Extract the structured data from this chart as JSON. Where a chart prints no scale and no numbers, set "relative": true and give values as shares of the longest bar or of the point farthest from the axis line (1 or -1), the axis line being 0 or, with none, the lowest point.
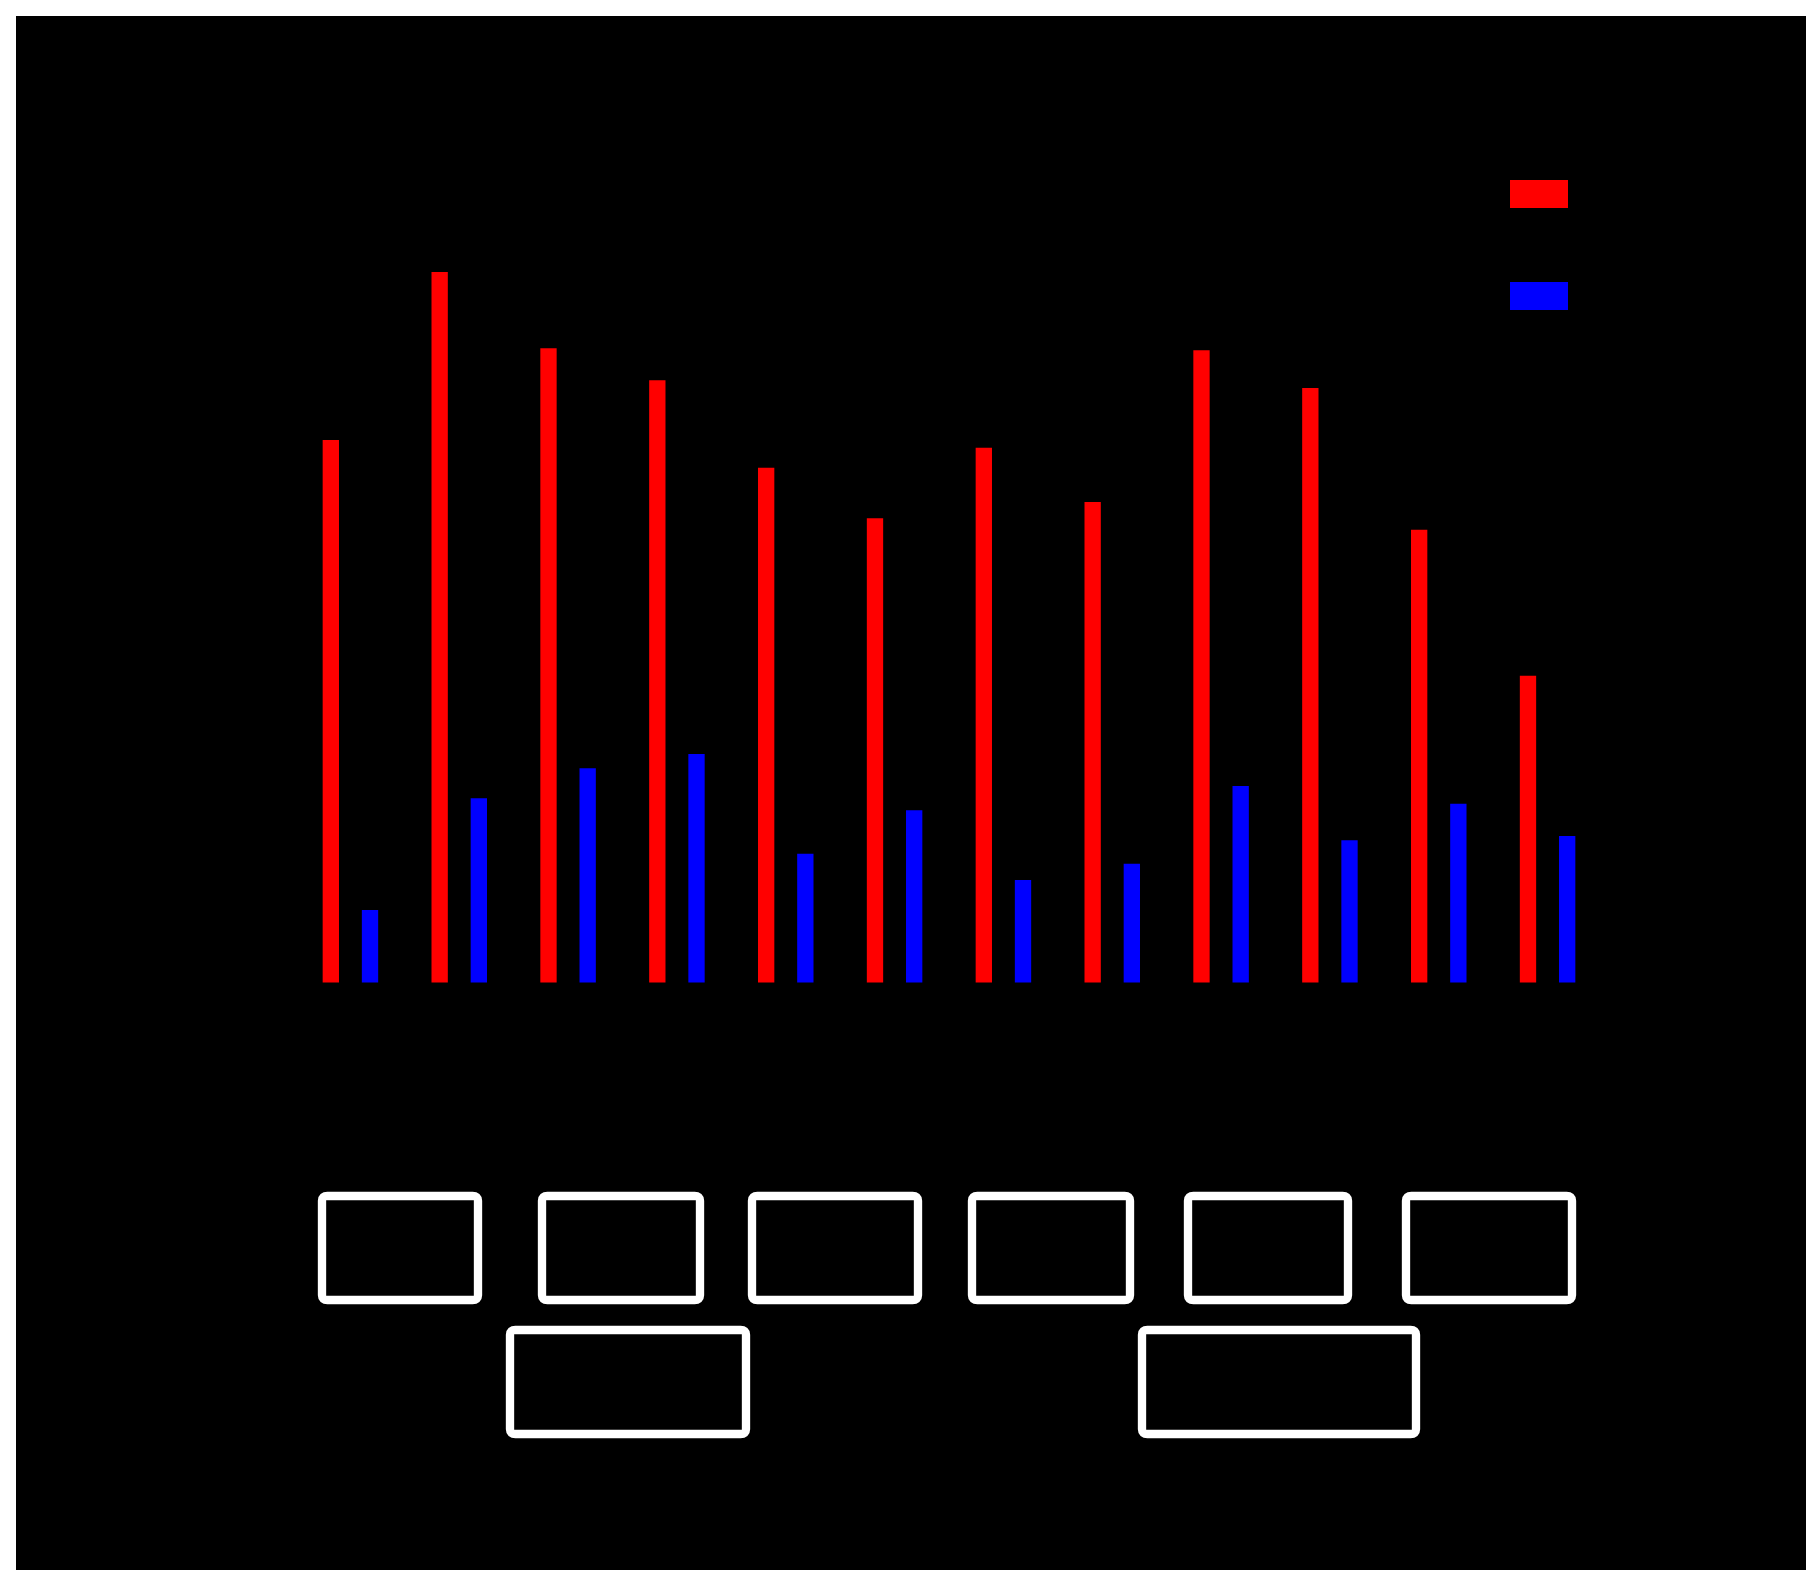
{
  "chart_data": {
    "type": "bar",
    "relative": true,
    "grid": false,
    "categories": [
      null,
      null,
      null,
      null,
      null,
      null,
      null,
      null,
      null,
      null,
      null,
      null
    ],
    "series": [
      {
        "color": "#ff0000",
        "values": [
          0.764,
          1,
          0.893,
          0.848,
          0.725,
          0.654,
          0.753,
          0.677,
          0.89,
          0.837,
          0.638,
          0.433
        ]
      },
      {
        "color": "#0000ff",
        "values": [
          0.104,
          0.261,
          0.303,
          0.323,
          0.183,
          0.244,
          0.146,
          0.169,
          0.278,
          0.202,
          0.253,
          0.208
        ]
      }
    ]
  }
}
